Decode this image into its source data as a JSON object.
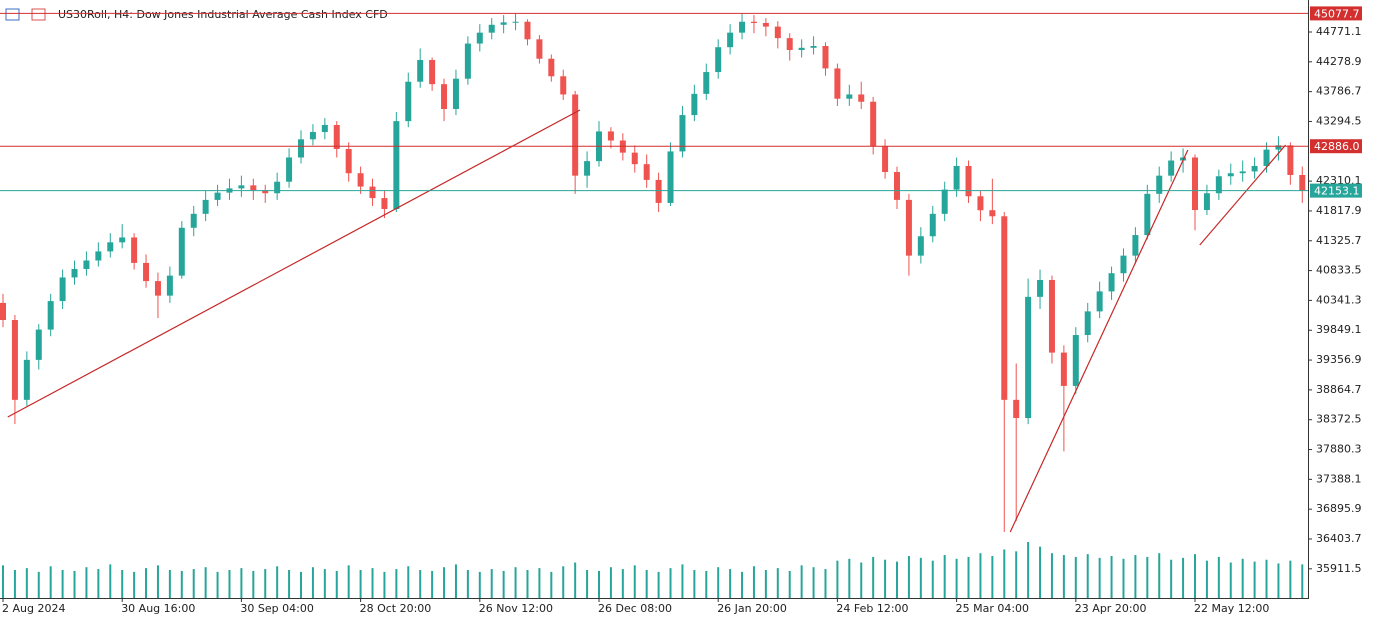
{
  "chart_data": {
    "type": "candlestick",
    "title": "US30Roll, H4:  Dow Jones Industrial Average Cash Index CFD",
    "up_color": "#26a69a",
    "down_color": "#ef5350",
    "volume_color": "#26a69a",
    "categories": [
      "2 Aug 2024",
      null,
      null,
      null,
      null,
      null,
      null,
      null,
      null,
      null,
      "30 Aug 16:00",
      null,
      null,
      null,
      null,
      null,
      null,
      null,
      null,
      null,
      "30 Sep 04:00",
      null,
      null,
      null,
      null,
      null,
      null,
      null,
      null,
      null,
      "28 Oct 20:00",
      null,
      null,
      null,
      null,
      null,
      null,
      null,
      null,
      null,
      "26 Nov 12:00",
      null,
      null,
      null,
      null,
      null,
      null,
      null,
      null,
      null,
      "26 Dec 08:00",
      null,
      null,
      null,
      null,
      null,
      null,
      null,
      null,
      null,
      "26 Jan 20:00",
      null,
      null,
      null,
      null,
      null,
      null,
      null,
      null,
      null,
      "24 Feb 12:00",
      null,
      null,
      null,
      null,
      null,
      null,
      null,
      null,
      null,
      "25 Mar 04:00",
      null,
      null,
      null,
      null,
      null,
      null,
      null,
      null,
      null,
      "23 Apr 20:00",
      null,
      null,
      null,
      null,
      null,
      null,
      null,
      null,
      null,
      "22 May 12:00",
      null,
      null,
      null,
      null,
      null,
      null,
      null,
      null,
      null
    ],
    "ohlc": [
      [
        40300,
        40450,
        39900,
        40018
      ],
      [
        40018,
        40100,
        38300,
        38700
      ],
      [
        38700,
        39500,
        38600,
        39360
      ],
      [
        39360,
        39950,
        39200,
        39860
      ],
      [
        39860,
        40450,
        39750,
        40330
      ],
      [
        40330,
        40850,
        40200,
        40720
      ],
      [
        40720,
        41000,
        40600,
        40860
      ],
      [
        40860,
        41150,
        40750,
        41000
      ],
      [
        41000,
        41300,
        40900,
        41150
      ],
      [
        41150,
        41450,
        41050,
        41300
      ],
      [
        41300,
        41600,
        41200,
        41380
      ],
      [
        41380,
        41450,
        40850,
        40960
      ],
      [
        40960,
        41100,
        40550,
        40660
      ],
      [
        40660,
        40800,
        40050,
        40420
      ],
      [
        40420,
        40900,
        40300,
        40750
      ],
      [
        40750,
        41650,
        40700,
        41540
      ],
      [
        41540,
        41900,
        41400,
        41770
      ],
      [
        41770,
        42150,
        41650,
        42000
      ],
      [
        42000,
        42250,
        41900,
        42120
      ],
      [
        42120,
        42350,
        42000,
        42190
      ],
      [
        42190,
        42400,
        42050,
        42240
      ],
      [
        42240,
        42350,
        42000,
        42160
      ],
      [
        42160,
        42250,
        41950,
        42110
      ],
      [
        42110,
        42450,
        42000,
        42300
      ],
      [
        42300,
        42850,
        42200,
        42700
      ],
      [
        42700,
        43150,
        42600,
        43000
      ],
      [
        43000,
        43250,
        42900,
        43120
      ],
      [
        43120,
        43350,
        43000,
        43236
      ],
      [
        43236,
        43300,
        42700,
        42840
      ],
      [
        42840,
        42950,
        42300,
        42440
      ],
      [
        42440,
        42550,
        42100,
        42220
      ],
      [
        42220,
        42350,
        41900,
        42030
      ],
      [
        42030,
        42150,
        41700,
        41850
      ],
      [
        41850,
        43450,
        41800,
        43300
      ],
      [
        43300,
        44100,
        43200,
        43950
      ],
      [
        43950,
        44500,
        43850,
        44309
      ],
      [
        44309,
        44350,
        43800,
        43910
      ],
      [
        43910,
        44000,
        43300,
        43500
      ],
      [
        43500,
        44150,
        43400,
        44000
      ],
      [
        44000,
        44700,
        43900,
        44580
      ],
      [
        44580,
        44900,
        44450,
        44760
      ],
      [
        44760,
        45000,
        44650,
        44890
      ],
      [
        44890,
        45050,
        44750,
        44930
      ],
      [
        44930,
        45077,
        44800,
        44940
      ],
      [
        44940,
        44980,
        44550,
        44650
      ],
      [
        44650,
        44720,
        44250,
        44330
      ],
      [
        44330,
        44400,
        43950,
        44040
      ],
      [
        44040,
        44150,
        43650,
        43740
      ],
      [
        43740,
        43800,
        42100,
        42400
      ],
      [
        42400,
        42800,
        42200,
        42640
      ],
      [
        42640,
        43300,
        42550,
        43130
      ],
      [
        43130,
        43200,
        42850,
        42980
      ],
      [
        42980,
        43100,
        42650,
        42780
      ],
      [
        42780,
        42900,
        42450,
        42590
      ],
      [
        42590,
        42750,
        42200,
        42330
      ],
      [
        42330,
        42450,
        41800,
        41950
      ],
      [
        41950,
        42950,
        41900,
        42800
      ],
      [
        42800,
        43550,
        42700,
        43400
      ],
      [
        43400,
        43900,
        43300,
        43750
      ],
      [
        43750,
        44250,
        43650,
        44110
      ],
      [
        44110,
        44650,
        44000,
        44520
      ],
      [
        44520,
        44900,
        44400,
        44760
      ],
      [
        44760,
        45077,
        44650,
        44940
      ],
      [
        44940,
        45050,
        44750,
        44920
      ],
      [
        44920,
        45000,
        44700,
        44860
      ],
      [
        44860,
        44950,
        44500,
        44670
      ],
      [
        44670,
        44750,
        44300,
        44474
      ],
      [
        44474,
        44650,
        44350,
        44510
      ],
      [
        44510,
        44700,
        44400,
        44540
      ],
      [
        44540,
        44600,
        44050,
        44170
      ],
      [
        44170,
        44250,
        43550,
        43670
      ],
      [
        43670,
        43900,
        43550,
        43740
      ],
      [
        43740,
        43950,
        43500,
        43620
      ],
      [
        43620,
        43700,
        42750,
        42880
      ],
      [
        42880,
        43000,
        42350,
        42460
      ],
      [
        42460,
        42550,
        41850,
        42000
      ],
      [
        42000,
        42100,
        40750,
        41080
      ],
      [
        41080,
        41550,
        40950,
        41400
      ],
      [
        41400,
        41900,
        41300,
        41770
      ],
      [
        41770,
        42300,
        41650,
        42170
      ],
      [
        42170,
        42700,
        42050,
        42560
      ],
      [
        42560,
        42650,
        41950,
        42060
      ],
      [
        42060,
        42150,
        41650,
        41830
      ],
      [
        41830,
        42350,
        41600,
        41730
      ],
      [
        41730,
        41800,
        36520,
        38700
      ],
      [
        38700,
        39300,
        36700,
        38400
      ],
      [
        38400,
        40700,
        38300,
        40400
      ],
      [
        40400,
        40850,
        40200,
        40678
      ],
      [
        40678,
        40750,
        39300,
        39480
      ],
      [
        39480,
        39600,
        37850,
        38930
      ],
      [
        38930,
        39900,
        38800,
        39770
      ],
      [
        39770,
        40300,
        39650,
        40160
      ],
      [
        40160,
        40650,
        40050,
        40490
      ],
      [
        40490,
        40900,
        40350,
        40790
      ],
      [
        40790,
        41200,
        40650,
        41080
      ],
      [
        41080,
        41550,
        40950,
        41420
      ],
      [
        41420,
        42250,
        41350,
        42100
      ],
      [
        42100,
        42550,
        41950,
        42400
      ],
      [
        42400,
        42800,
        42300,
        42650
      ],
      [
        42650,
        42850,
        42450,
        42700
      ],
      [
        42700,
        42750,
        41500,
        41833
      ],
      [
        41833,
        42250,
        41750,
        42110
      ],
      [
        42110,
        42500,
        42000,
        42390
      ],
      [
        42390,
        42600,
        42250,
        42440
      ],
      [
        42440,
        42650,
        42300,
        42470
      ],
      [
        42470,
        42700,
        42350,
        42560
      ],
      [
        42560,
        42950,
        42450,
        42830
      ],
      [
        42830,
        43050,
        42650,
        42900
      ],
      [
        42900,
        42950,
        42250,
        42411
      ],
      [
        42411,
        42550,
        41950,
        42153
      ]
    ],
    "volume": [
      35,
      30,
      32,
      28,
      34,
      30,
      29,
      33,
      31,
      36,
      30,
      28,
      32,
      35,
      30,
      29,
      31,
      33,
      28,
      30,
      32,
      29,
      31,
      34,
      30,
      28,
      33,
      31,
      29,
      35,
      30,
      32,
      28,
      31,
      34,
      30,
      29,
      33,
      36,
      30,
      28,
      31,
      29,
      33,
      30,
      32,
      28,
      34,
      38,
      30,
      29,
      33,
      31,
      35,
      30,
      28,
      32,
      36,
      30,
      29,
      33,
      31,
      28,
      34,
      30,
      32,
      29,
      35,
      33,
      31,
      40,
      42,
      38,
      44,
      41,
      39,
      45,
      43,
      40,
      46,
      42,
      44,
      48,
      45,
      52,
      50,
      60,
      55,
      48,
      46,
      44,
      47,
      43,
      45,
      42,
      46,
      44,
      48,
      41,
      43,
      47,
      40,
      44,
      38,
      42,
      39,
      41,
      37,
      40,
      36
    ],
    "ylim": [
      35430,
      45299
    ],
    "yticks": [
      44771.1,
      44278.9,
      43786.7,
      43294.5,
      42310.1,
      41817.9,
      41325.7,
      40833.5,
      40341.3,
      39849.1,
      39356.9,
      38864.7,
      38372.5,
      37880.3,
      37388.1,
      36895.9,
      36403.7,
      35911.5
    ],
    "levels": [
      {
        "value": 45077.7,
        "color": "#d32f2f"
      },
      {
        "value": 42886,
        "label": "42886.0",
        "color": "#d32f2f"
      },
      {
        "value": 42153.1,
        "color": "#26a69a"
      }
    ],
    "trendlines": [
      {
        "color": "#c62828",
        "x": [
          0.4,
          48.4
        ],
        "y": [
          38417,
          43484
        ]
      },
      {
        "color": "#c62828",
        "x": [
          84.5,
          99.4
        ],
        "y": [
          36519,
          42824
        ]
      },
      {
        "color": "#c62828",
        "x": [
          100.4,
          107.6
        ],
        "y": [
          41256,
          42906
        ]
      }
    ]
  }
}
